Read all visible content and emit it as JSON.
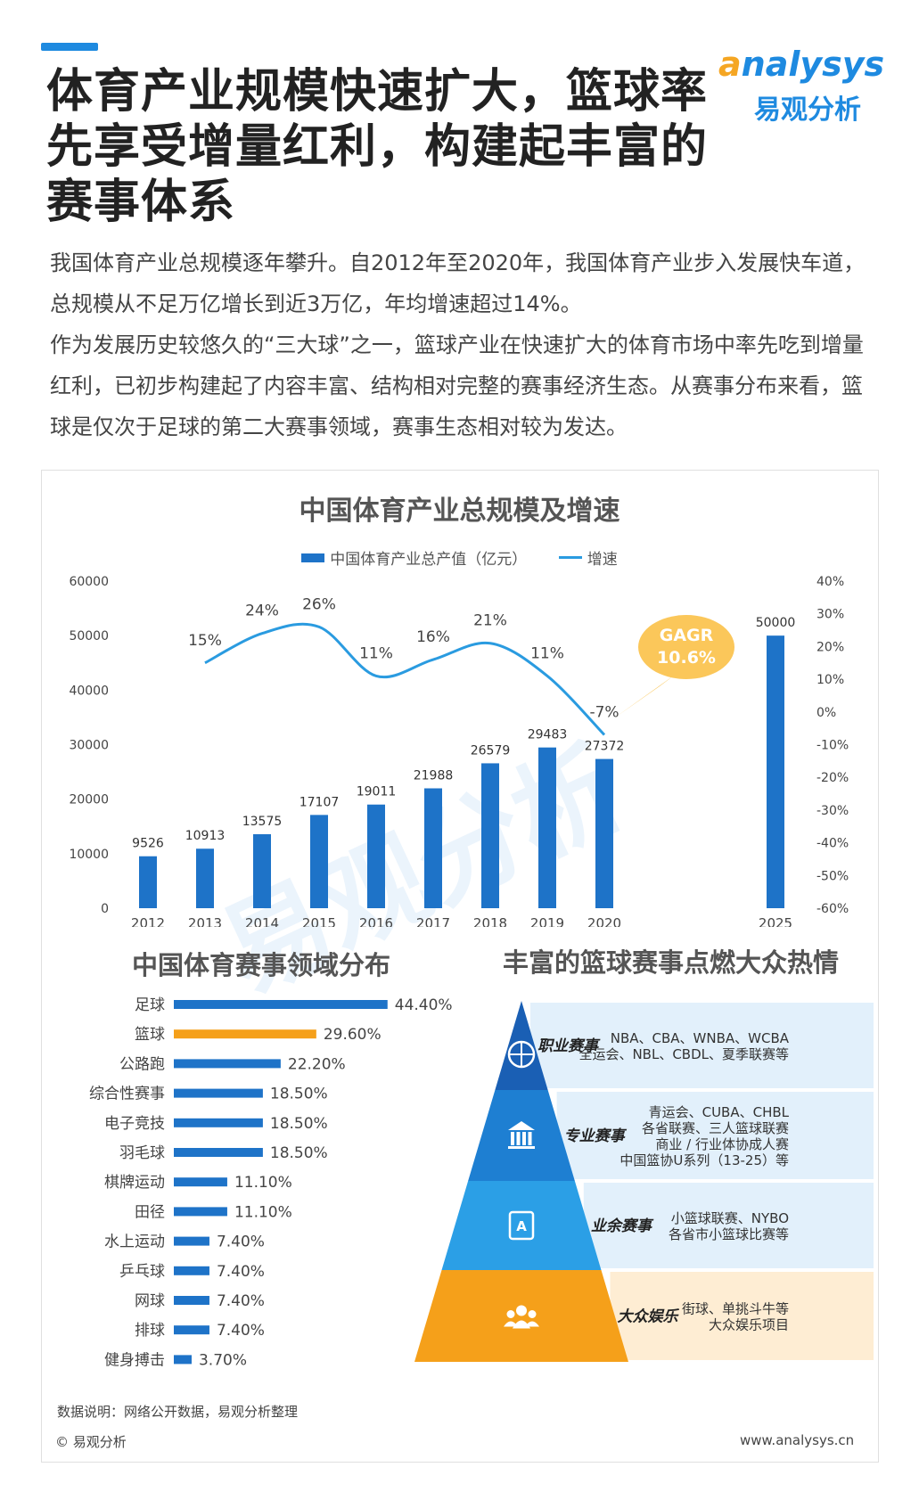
{
  "header": {
    "title": "体育产业规模快速扩大，篮球率先享受增量红利，构建起丰富的赛事体系",
    "logo_en_a": "a",
    "logo_en_rest": "nalysys",
    "logo_cn": "易观分析"
  },
  "intro": {
    "p1": "我国体育产业总规模逐年攀升。自2012年至2020年，我国体育产业步入发展快车道，总规模从不足万亿增长到近3万亿，年均增速超过14%。",
    "p2": "作为发展历史较悠久的“三大球”之一，篮球产业在快速扩大的体育市场中率先吃到增量红利，已初步构建起了内容丰富、结构相对完整的赛事经济生态。从赛事分布来看，篮球是仅次于足球的第二大赛事领域，赛事生态相对较为发达。"
  },
  "watermark": "易观分析",
  "chart_data": [
    {
      "type": "bar",
      "title": "中国体育产业总规模及增速",
      "categories": [
        "2012",
        "2013",
        "2014",
        "2015",
        "2016",
        "2017",
        "2018",
        "2019",
        "2020",
        "2025"
      ],
      "series": [
        {
          "name": "中国体育产业总产值（亿元）",
          "values": [
            9526,
            10913,
            13575,
            17107,
            19011,
            21988,
            26579,
            29483,
            27372,
            50000
          ]
        },
        {
          "name": "增速",
          "type": "line",
          "x": [
            "2013",
            "2014",
            "2015",
            "2016",
            "2017",
            "2018",
            "2019",
            "2020"
          ],
          "values": [
            15,
            24,
            26,
            11,
            16,
            21,
            11,
            -7
          ],
          "labels": [
            "15%",
            "24%",
            "26%",
            "11%",
            "16%",
            "21%",
            "11%",
            "-7%"
          ]
        }
      ],
      "ylim": [
        0,
        60000
      ],
      "y_ticks": [
        "60000",
        "50000",
        "40000",
        "30000",
        "20000",
        "10000",
        "0"
      ],
      "y2lim": [
        -60,
        40
      ],
      "y2_ticks": [
        "40%",
        "30%",
        "20%",
        "10%",
        "0%",
        "-10%",
        "-20%",
        "-30%",
        "-40%",
        "-50%",
        "-60%"
      ],
      "annotation": {
        "label": "GAGR",
        "value": "10.6%"
      },
      "legend_position": "top",
      "colors": {
        "bar": "#1e73c8",
        "line": "#2a9be0",
        "annotation": "#fbc75a"
      }
    },
    {
      "type": "bar",
      "orientation": "horizontal",
      "title": "中国体育赛事领域分布",
      "categories": [
        "足球",
        "篮球",
        "公路跑",
        "综合性赛事",
        "电子竞技",
        "羽毛球",
        "棋牌运动",
        "田径",
        "水上运动",
        "乒乓球",
        "网球",
        "排球",
        "健身搏击"
      ],
      "values": [
        44.4,
        29.6,
        22.2,
        18.5,
        18.5,
        18.5,
        11.1,
        11.1,
        7.4,
        7.4,
        7.4,
        7.4,
        3.7
      ],
      "labels": [
        "44.40%",
        "29.60%",
        "22.20%",
        "18.50%",
        "18.50%",
        "18.50%",
        "11.10%",
        "11.10%",
        "7.40%",
        "7.40%",
        "7.40%",
        "7.40%",
        "3.70%"
      ],
      "highlight": "篮球",
      "colors": {
        "bar": "#1e73c8",
        "highlight": "#f5a01a"
      }
    }
  ],
  "pyramid": {
    "title": "丰富的篮球赛事点燃大众热情",
    "levels": [
      {
        "name": "职业赛事",
        "icon": "basketball-icon",
        "lines": [
          "NBA、CBA、WNBA、WCBA",
          "全运会、NBL、CBDL、夏季联赛等"
        ],
        "color": "#1a5fb4"
      },
      {
        "name": "专业赛事",
        "icon": "building-icon",
        "lines": [
          "青运会、CUBA、CHBL",
          "各省联赛、三人篮球联赛",
          "商业 / 行业体协成人赛",
          "中国篮协U系列（13-25）等"
        ],
        "color": "#1e7fd2"
      },
      {
        "name": "业余赛事",
        "icon": "id-card-icon",
        "lines": [
          "小篮球联赛、NYBO",
          "各省市小篮球比赛等"
        ],
        "color": "#2b9fe6"
      },
      {
        "name": "大众娱乐",
        "icon": "people-icon",
        "lines": [
          "街球、单挑斗牛等",
          "大众娱乐项目"
        ],
        "color": "#f5a01a"
      }
    ]
  },
  "footer": {
    "source": "数据说明：网络公开数据，易观分析整理",
    "copyright": "© 易观分析",
    "url": "www.analysys.cn"
  }
}
